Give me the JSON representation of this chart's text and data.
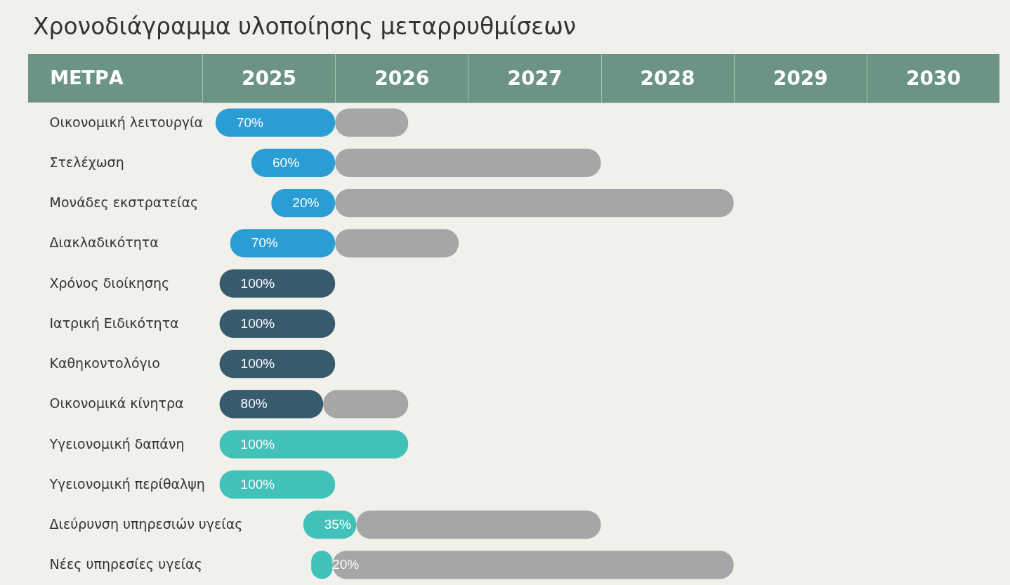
{
  "chart_data": {
    "type": "bar",
    "title": "Χρονοδιάγραμμα υλοποίησης μεταρρυθμίσεων",
    "ylabel": "ΜΕΤΡΑ",
    "orientation": "horizontal",
    "categories": [
      "Οικονομική λειτουργία",
      "Στελέχωση",
      "Μονάδες εκστρατείας",
      "Διακλαδικότητα",
      "Χρόνος διοίκησης",
      "Ιατρική Ειδικότητα",
      "Καθηκοντολόγιο",
      "Οικονομικά κίνητρα",
      "Υγειονομική δαπάνη",
      "Υγειονομική περίθαλψη",
      "Διεύρυνση υπηρεσιών υγείας",
      "Νέες υπηρεσίες υγείας"
    ],
    "series": [
      {
        "colors": [
          "#2a9dd4",
          "#2a9dd4",
          "#2a9dd4",
          "#2a9dd4",
          "#365b6d",
          "#365b6d",
          "#365b6d",
          "#365b6d",
          "#42c1b9",
          "#42c1b9",
          "#42c1b9",
          "#42c1b9"
        ],
        "base": [
          2025.1,
          2025.37,
          2025.52,
          2025.21,
          2025.13,
          2025.13,
          2025.13,
          2025.13,
          2025.13,
          2025.13,
          2025.76,
          2025.82
        ],
        "values": [
          0.9,
          0.63,
          0.48,
          0.79,
          0.87,
          0.87,
          0.87,
          0.78,
          1.42,
          0.87,
          0.4,
          0.16
        ]
      },
      {
        "color": "#a6a6a6",
        "base": [
          2026.0,
          2026.0,
          2026.0,
          2026.0,
          null,
          null,
          null,
          2025.91,
          null,
          null,
          2026.16,
          2025.98
        ],
        "values": [
          0.55,
          2.0,
          3.0,
          0.93,
          null,
          null,
          null,
          0.64,
          null,
          null,
          1.84,
          3.02
        ]
      }
    ],
    "annotations": [
      "70%",
      "60%",
      "20%",
      "70%",
      "100%",
      "100%",
      "100%",
      "80%",
      "100%",
      "100%",
      "35%",
      "20%"
    ],
    "xlim": [
      2025,
      2031
    ],
    "xticks": [
      {
        "value": 2025.5,
        "label": "2025"
      },
      {
        "value": 2026.5,
        "label": "2026"
      },
      {
        "value": 2027.5,
        "label": "2027"
      },
      {
        "value": 2028.5,
        "label": "2028"
      },
      {
        "value": 2029.5,
        "label": "2029"
      },
      {
        "value": 2030.5,
        "label": "2030"
      }
    ]
  }
}
